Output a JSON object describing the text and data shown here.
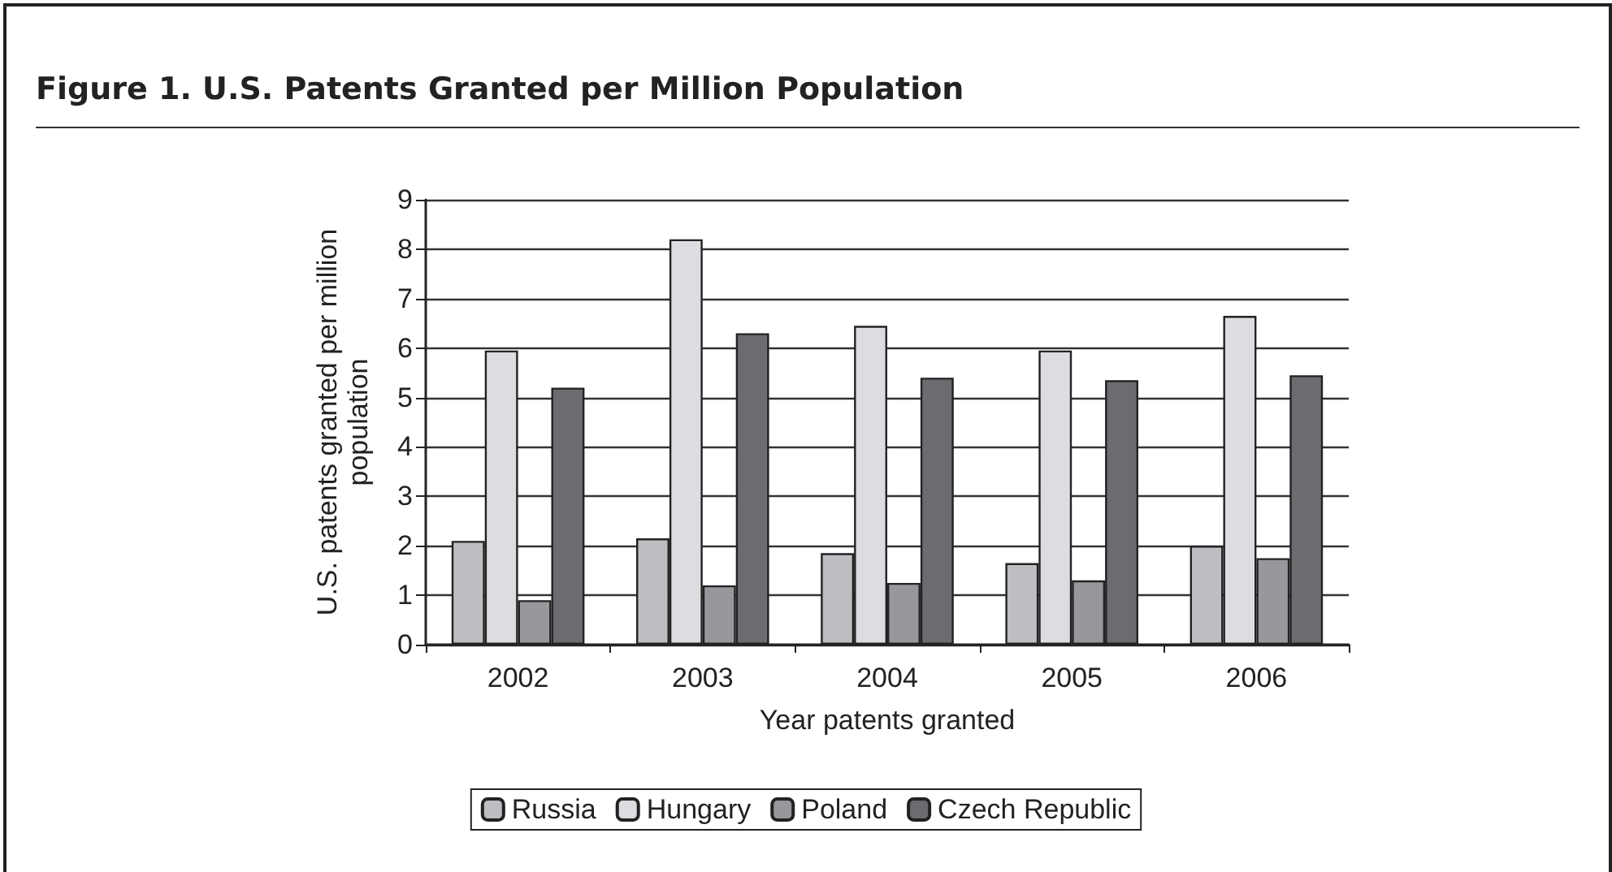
{
  "chart_data": {
    "type": "bar",
    "title": "Figure 1.  U.S. Patents Granted per Million Population",
    "xlabel": "Year patents granted",
    "ylabel": "U.S. patents granted per million\npopulation",
    "categories": [
      "2002",
      "2003",
      "2004",
      "2005",
      "2006"
    ],
    "series": [
      {
        "name": "Russia",
        "color": "#bdbec2",
        "values": [
          2.1,
          2.15,
          1.85,
          1.65,
          2.0
        ]
      },
      {
        "name": "Hungary",
        "color": "#dcdde0",
        "values": [
          5.95,
          8.2,
          6.45,
          5.95,
          6.65
        ]
      },
      {
        "name": "Poland",
        "color": "#97989c",
        "values": [
          0.9,
          1.2,
          1.25,
          1.3,
          1.75
        ]
      },
      {
        "name": "Czech Republic",
        "color": "#6b6c70",
        "values": [
          5.2,
          6.3,
          5.4,
          5.35,
          5.45
        ]
      }
    ],
    "ylim": [
      0,
      9
    ],
    "yticks": [
      0,
      1,
      2,
      3,
      4,
      5,
      6,
      7,
      8,
      9
    ],
    "grid": "y",
    "legend": "bottom"
  }
}
